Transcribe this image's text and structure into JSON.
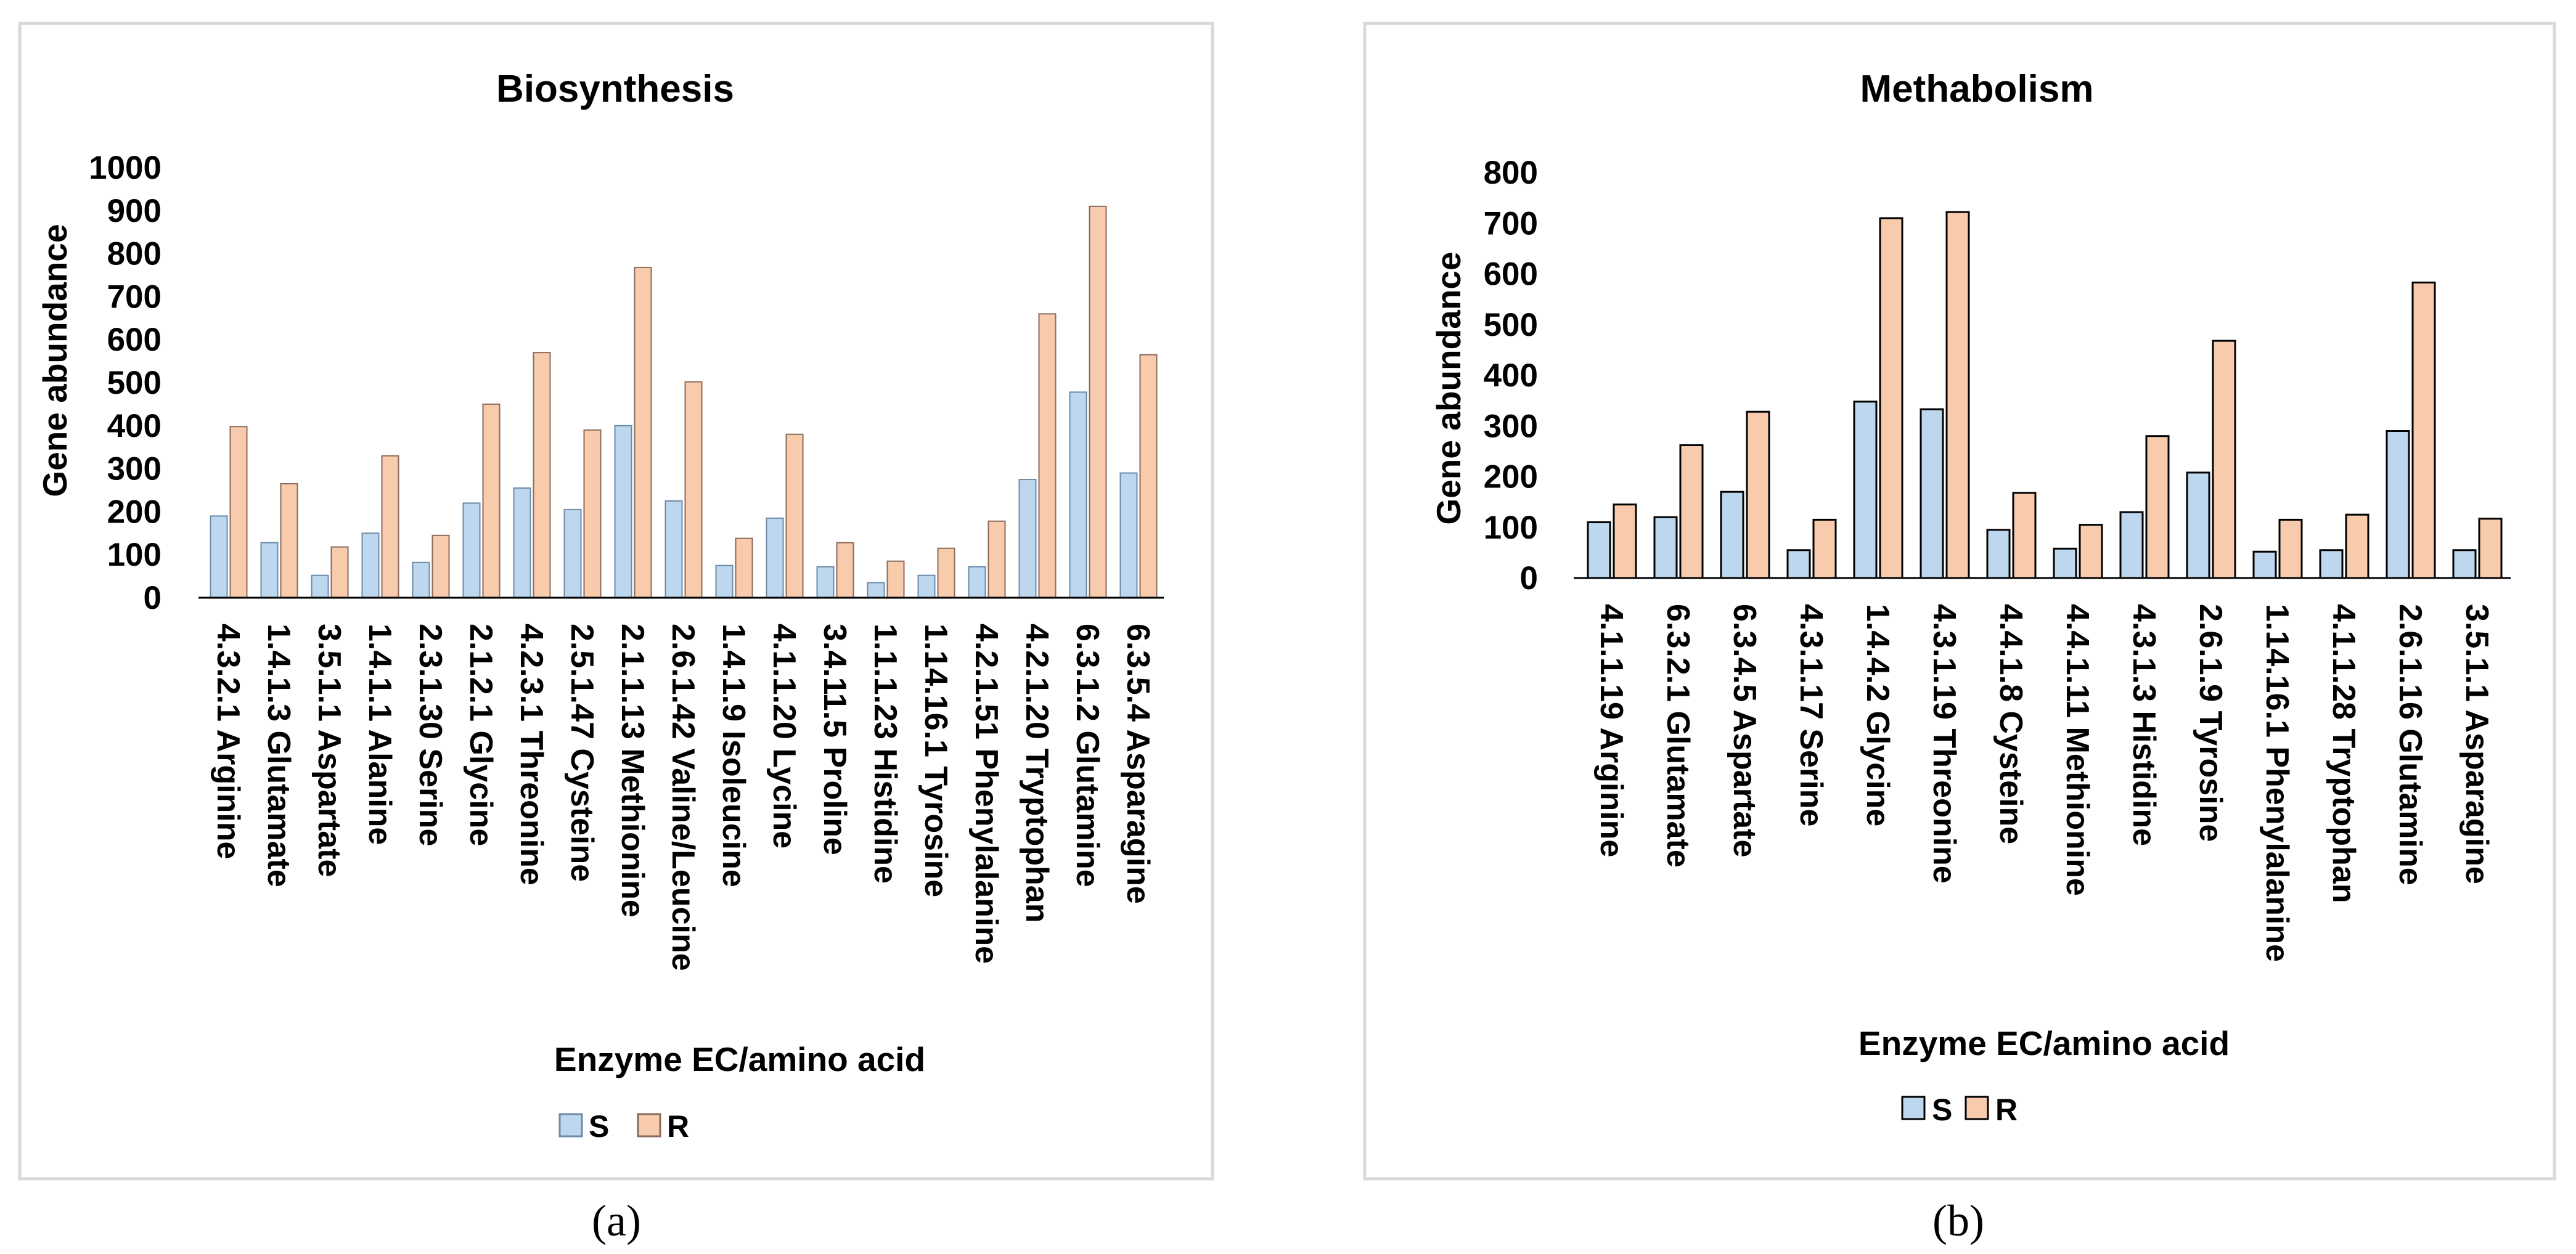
{
  "chart_data": [
    {
      "type": "bar",
      "title": "Biosynthesis",
      "xlabel": "Enzyme EC/amino acid",
      "ylabel": "Gene abundance",
      "ylim": [
        0,
        1000
      ],
      "yticks": [
        "0",
        "100",
        "200",
        "300",
        "400",
        "500",
        "600",
        "700",
        "800",
        "900",
        "1000"
      ],
      "categories": [
        "4.3.2.1 Arginine",
        "1.4.1.3 Glutamate",
        "3.5.1.1 Aspartate",
        "1.4.1.1 Alanine",
        "2.3.1.30 Serine",
        "2.1.2.1 Glycine",
        "4.2.3.1 Threonine",
        "2.5.1.47 Cysteine",
        "2.1.1.13 Methionine",
        "2.6.1.42 Valine/Leucine",
        "1.4.1.9 Isoleucine",
        "4.1.1.20 Lycine",
        "3.4.11.5 Proline",
        "1.1.1.23 Histidine",
        "1.14.16.1 Tyrosine",
        "4.2.1.51 Phenylalanine",
        "4.2.1.20 Tryptophan",
        "6.3.1.2 Glutamine",
        "6.3.5.4 Asparagine"
      ],
      "series": [
        {
          "name": "S",
          "color": "#bdd7ee",
          "edge": "#6d8aa8",
          "values": [
            190,
            128,
            52,
            150,
            82,
            220,
            255,
            205,
            400,
            225,
            75,
            185,
            72,
            35,
            52,
            72,
            275,
            478,
            290
          ]
        },
        {
          "name": "R",
          "color": "#f8cbad",
          "edge": "#8a6a5a",
          "values": [
            398,
            265,
            118,
            330,
            145,
            450,
            570,
            390,
            768,
            502,
            138,
            380,
            128,
            85,
            115,
            178,
            660,
            910,
            565
          ]
        }
      ],
      "legend": "bottom",
      "panel_label": "(a)"
    },
    {
      "type": "bar",
      "title": "Methabolism",
      "xlabel": "Enzyme EC/amino acid",
      "ylabel": "Gene abundance",
      "ylim": [
        0,
        800
      ],
      "yticks": [
        "0",
        "100",
        "200",
        "300",
        "400",
        "500",
        "600",
        "700",
        "800"
      ],
      "categories": [
        "4.1.1.19 Arginine",
        "6.3.2.1 Glutamate",
        "6.3.4.5 Aspartate",
        "4.3.1.17 Serine",
        "1.4.4.2 Glycine",
        "4.3.1.19 Threonine",
        "4.4.1.8 Cysteine",
        "4.4.1.11 Methionine",
        "4.3.1.3 Histidine",
        "2.6.1.9 Tyrosine",
        "1.14.16.1 Phenylalanine",
        "4.1.1.28 Tryptophan",
        "2.6.1.16 Glutamine",
        "3.5.1.1 Asparagine"
      ],
      "series": [
        {
          "name": "S",
          "color": "#bdd7ee",
          "edge": "#000000",
          "values": [
            110,
            120,
            170,
            55,
            348,
            333,
            95,
            58,
            130,
            208,
            52,
            55,
            290,
            55
          ]
        },
        {
          "name": "R",
          "color": "#f8cbad",
          "edge": "#000000",
          "values": [
            145,
            262,
            328,
            115,
            710,
            722,
            168,
            105,
            280,
            468,
            115,
            125,
            583,
            117
          ]
        }
      ],
      "legend": "bottom",
      "panel_label": "(b)"
    }
  ]
}
